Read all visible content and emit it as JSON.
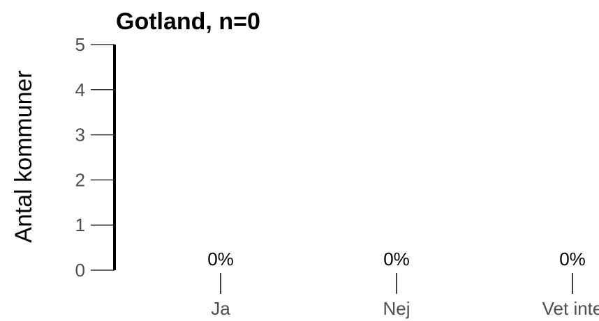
{
  "chart_data": {
    "type": "bar",
    "title": "Gotland, n=0",
    "xlabel": "",
    "ylabel": "Antal kommuner",
    "categories": [
      "Ja",
      "Nej",
      "Vet inte"
    ],
    "values": [
      0,
      0,
      0
    ],
    "data_labels": [
      "0%",
      "0%",
      "0%"
    ],
    "ylim": [
      0,
      5
    ],
    "yticks": [
      0,
      1,
      2,
      3,
      4,
      5
    ],
    "grid": false,
    "legend": "none",
    "colors": {
      "axis": "#000000",
      "tick_text": "#4d4d4d",
      "text": "#000000"
    }
  }
}
